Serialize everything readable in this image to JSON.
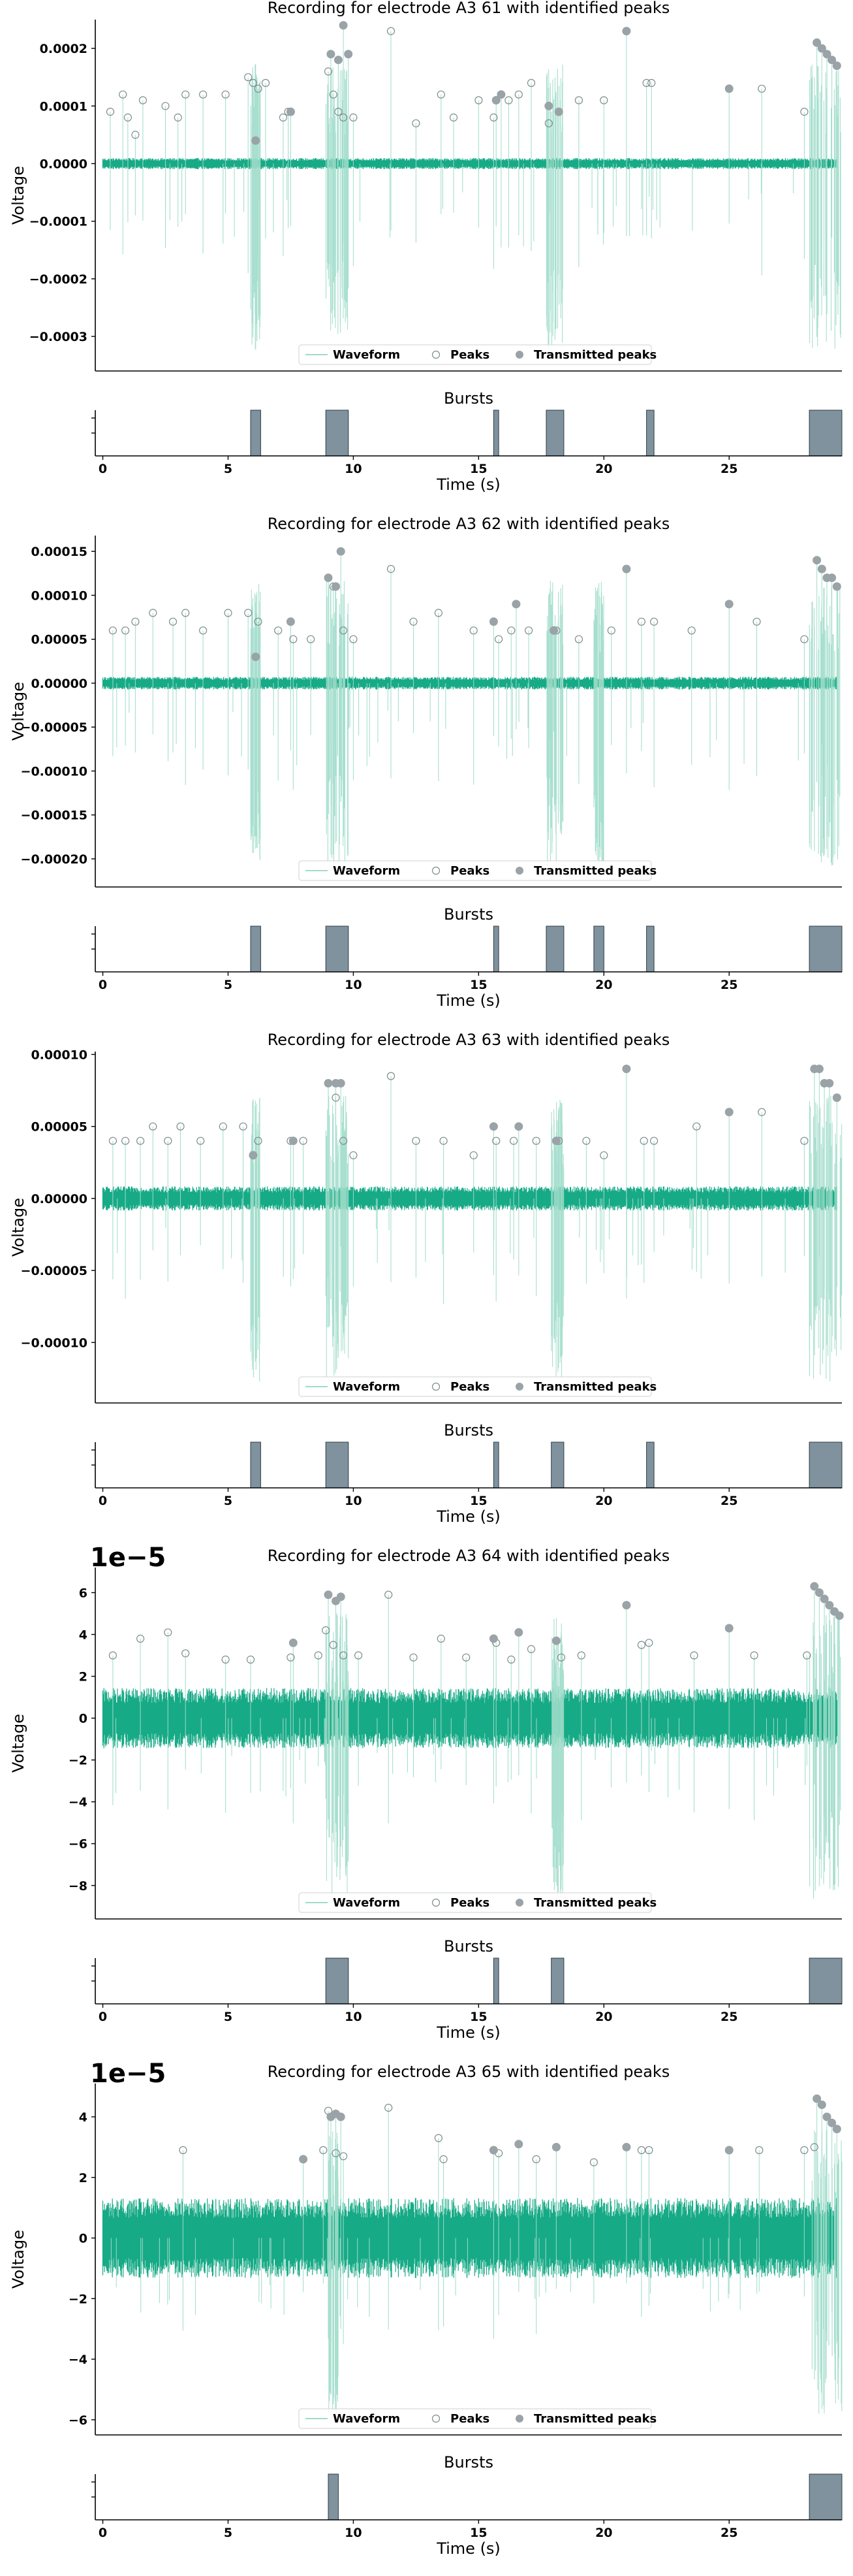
{
  "chart_data": [
    {
      "type": "line",
      "title": "Recording for electrode A3 61 with identified peaks",
      "ylabel": "Voltage",
      "ylim": [
        -0.00036,
        0.00025
      ],
      "yticks": [
        -0.0003,
        -0.0002,
        -0.0001,
        0.0,
        0.0001,
        0.0002
      ],
      "ytick_labels": [
        "−0.0003",
        "−0.0002",
        "−0.0001",
        "0.0000",
        "0.0001",
        "0.0002"
      ],
      "offset_text": "",
      "xlim": [
        -0.3,
        29.5
      ],
      "noise_amp": 8e-06,
      "legend": [
        "Waveform",
        "Peaks",
        "Transmitted peaks"
      ],
      "peaks": [
        [
          0.3,
          9e-05
        ],
        [
          0.8,
          0.00012
        ],
        [
          1.0,
          8e-05
        ],
        [
          1.3,
          5e-05
        ],
        [
          1.6,
          0.00011
        ],
        [
          2.5,
          0.0001
        ],
        [
          3.0,
          8e-05
        ],
        [
          3.3,
          0.00012
        ],
        [
          4.0,
          0.00012
        ],
        [
          4.9,
          0.00012
        ],
        [
          5.8,
          0.00015
        ],
        [
          6.0,
          0.00014
        ],
        [
          6.2,
          0.00013
        ],
        [
          6.5,
          0.00014
        ],
        [
          7.2,
          8e-05
        ],
        [
          7.4,
          9e-05
        ],
        [
          9.0,
          0.00016
        ],
        [
          9.2,
          0.00012
        ],
        [
          9.4,
          9e-05
        ],
        [
          9.6,
          8e-05
        ],
        [
          10.0,
          8e-05
        ],
        [
          11.5,
          0.00023
        ],
        [
          12.5,
          7e-05
        ],
        [
          13.5,
          0.00012
        ],
        [
          14.0,
          8e-05
        ],
        [
          15.0,
          0.00011
        ],
        [
          15.6,
          8e-05
        ],
        [
          16.2,
          0.00011
        ],
        [
          16.6,
          0.00012
        ],
        [
          17.1,
          0.00014
        ],
        [
          17.8,
          7e-05
        ],
        [
          18.2,
          9e-05
        ],
        [
          19.0,
          0.00011
        ],
        [
          20.0,
          0.00011
        ],
        [
          21.7,
          0.00014
        ],
        [
          21.9,
          0.00014
        ],
        [
          26.3,
          0.00013
        ],
        [
          28.0,
          9e-05
        ]
      ],
      "transmitted_peaks": [
        [
          6.1,
          4e-05
        ],
        [
          7.5,
          9e-05
        ],
        [
          9.1,
          0.00019
        ],
        [
          9.4,
          0.00018
        ],
        [
          9.6,
          0.00024
        ],
        [
          9.8,
          0.00019
        ],
        [
          15.7,
          0.00011
        ],
        [
          15.9,
          0.00012
        ],
        [
          17.8,
          0.0001
        ],
        [
          18.2,
          9e-05
        ],
        [
          20.9,
          0.00023
        ],
        [
          25.0,
          0.00013
        ],
        [
          28.5,
          0.00021
        ],
        [
          28.7,
          0.0002
        ],
        [
          28.9,
          0.00019
        ],
        [
          29.1,
          0.00018
        ],
        [
          29.3,
          0.00017
        ]
      ],
      "burst_ticks_x": [
        0,
        5,
        10,
        15,
        20,
        25
      ],
      "bursts_title": "Bursts",
      "bursts_xlabel": "Time (s)",
      "bursts": [
        [
          5.9,
          6.3
        ],
        [
          8.9,
          9.8
        ],
        [
          15.6,
          15.8
        ],
        [
          17.7,
          18.4
        ],
        [
          21.7,
          22.0
        ],
        [
          28.2,
          29.5
        ]
      ]
    },
    {
      "type": "line",
      "title": "Recording for electrode A3 62 with identified peaks",
      "ylabel": "Voltage",
      "ylim": [
        -0.000232,
        0.000168
      ],
      "yticks": [
        -0.0002,
        -0.00015,
        -0.0001,
        -5e-05,
        0.0,
        5e-05,
        0.0001,
        0.00015
      ],
      "ytick_labels": [
        "−0.00020",
        "−0.00015",
        "−0.00010",
        "−0.00005",
        "0.00000",
        "0.00005",
        "0.00010",
        "0.00015"
      ],
      "offset_text": "",
      "xlim": [
        -0.3,
        29.5
      ],
      "noise_amp": 6e-06,
      "legend": [
        "Waveform",
        "Peaks",
        "Transmitted peaks"
      ],
      "peaks": [
        [
          0.4,
          6e-05
        ],
        [
          0.9,
          6e-05
        ],
        [
          1.3,
          7e-05
        ],
        [
          2.0,
          8e-05
        ],
        [
          2.8,
          7e-05
        ],
        [
          3.3,
          8e-05
        ],
        [
          4.0,
          6e-05
        ],
        [
          5.0,
          8e-05
        ],
        [
          5.8,
          8e-05
        ],
        [
          6.2,
          7e-05
        ],
        [
          7.0,
          6e-05
        ],
        [
          7.6,
          5e-05
        ],
        [
          8.3,
          5e-05
        ],
        [
          9.0,
          0.00012
        ],
        [
          9.2,
          0.00011
        ],
        [
          9.6,
          6e-05
        ],
        [
          10.0,
          5e-05
        ],
        [
          11.5,
          0.00013
        ],
        [
          12.4,
          7e-05
        ],
        [
          13.4,
          8e-05
        ],
        [
          14.8,
          6e-05
        ],
        [
          15.8,
          5e-05
        ],
        [
          16.3,
          6e-05
        ],
        [
          17.0,
          6e-05
        ],
        [
          18.1,
          6e-05
        ],
        [
          19.0,
          5e-05
        ],
        [
          20.3,
          6e-05
        ],
        [
          21.5,
          7e-05
        ],
        [
          22.0,
          7e-05
        ],
        [
          23.5,
          6e-05
        ],
        [
          26.1,
          7e-05
        ],
        [
          28.0,
          5e-05
        ]
      ],
      "transmitted_peaks": [
        [
          6.1,
          3e-05
        ],
        [
          7.5,
          7e-05
        ],
        [
          9.0,
          0.00012
        ],
        [
          9.3,
          0.00011
        ],
        [
          9.5,
          0.00015
        ],
        [
          15.6,
          7e-05
        ],
        [
          16.5,
          9e-05
        ],
        [
          18.0,
          6e-05
        ],
        [
          20.9,
          0.00013
        ],
        [
          25.0,
          9e-05
        ],
        [
          28.5,
          0.00014
        ],
        [
          28.7,
          0.00013
        ],
        [
          28.9,
          0.00012
        ],
        [
          29.1,
          0.00012
        ],
        [
          29.3,
          0.00011
        ]
      ],
      "burst_ticks_x": [
        0,
        5,
        10,
        15,
        20,
        25
      ],
      "bursts_title": "Bursts",
      "bursts_xlabel": "Time (s)",
      "bursts": [
        [
          5.9,
          6.3
        ],
        [
          8.9,
          9.8
        ],
        [
          15.6,
          15.8
        ],
        [
          17.7,
          18.4
        ],
        [
          19.6,
          20.0
        ],
        [
          21.7,
          22.0
        ],
        [
          28.2,
          29.5
        ]
      ]
    },
    {
      "type": "line",
      "title": "Recording for electrode A3 63 with identified peaks",
      "ylabel": "Voltage",
      "ylim": [
        -0.000142,
        0.000102
      ],
      "yticks": [
        -0.0001,
        -5e-05,
        0.0,
        5e-05,
        0.0001
      ],
      "ytick_labels": [
        "−0.00010",
        "−0.00005",
        "0.00000",
        "0.00005",
        "0.00010"
      ],
      "offset_text": "",
      "xlim": [
        -0.3,
        29.5
      ],
      "noise_amp": 7e-06,
      "legend": [
        "Waveform",
        "Peaks",
        "Transmitted peaks"
      ],
      "peaks": [
        [
          0.4,
          4e-05
        ],
        [
          0.9,
          4e-05
        ],
        [
          1.5,
          4e-05
        ],
        [
          2.0,
          5e-05
        ],
        [
          2.6,
          4e-05
        ],
        [
          3.1,
          5e-05
        ],
        [
          3.9,
          4e-05
        ],
        [
          4.8,
          5e-05
        ],
        [
          5.6,
          5e-05
        ],
        [
          6.2,
          4e-05
        ],
        [
          7.5,
          4e-05
        ],
        [
          8.0,
          4e-05
        ],
        [
          9.0,
          8e-05
        ],
        [
          9.3,
          7e-05
        ],
        [
          9.6,
          4e-05
        ],
        [
          10.0,
          3e-05
        ],
        [
          11.5,
          8.5e-05
        ],
        [
          12.5,
          4e-05
        ],
        [
          13.6,
          4e-05
        ],
        [
          14.8,
          3e-05
        ],
        [
          15.7,
          4e-05
        ],
        [
          16.4,
          4e-05
        ],
        [
          17.3,
          4e-05
        ],
        [
          18.2,
          4e-05
        ],
        [
          19.3,
          4e-05
        ],
        [
          20.0,
          3e-05
        ],
        [
          21.6,
          4e-05
        ],
        [
          22.0,
          4e-05
        ],
        [
          23.7,
          5e-05
        ],
        [
          26.3,
          6e-05
        ],
        [
          28.0,
          4e-05
        ]
      ],
      "transmitted_peaks": [
        [
          6.0,
          3e-05
        ],
        [
          7.6,
          4e-05
        ],
        [
          9.0,
          8e-05
        ],
        [
          9.3,
          8e-05
        ],
        [
          9.5,
          8e-05
        ],
        [
          15.6,
          5e-05
        ],
        [
          16.6,
          5e-05
        ],
        [
          18.1,
          4e-05
        ],
        [
          20.9,
          9e-05
        ],
        [
          25.0,
          6e-05
        ],
        [
          28.4,
          9e-05
        ],
        [
          28.6,
          9e-05
        ],
        [
          28.8,
          8e-05
        ],
        [
          29.0,
          8e-05
        ],
        [
          29.3,
          7e-05
        ]
      ],
      "burst_ticks_x": [
        0,
        5,
        10,
        15,
        20,
        25
      ],
      "bursts_title": "Bursts",
      "bursts_xlabel": "Time (s)",
      "bursts": [
        [
          5.9,
          6.3
        ],
        [
          8.9,
          9.8
        ],
        [
          15.6,
          15.8
        ],
        [
          17.9,
          18.4
        ],
        [
          21.7,
          22.0
        ],
        [
          28.2,
          29.5
        ]
      ]
    },
    {
      "type": "line",
      "title": "Recording for electrode A3 64 with identified peaks",
      "ylabel": "Voltage",
      "ylim": [
        -9.6,
        7.2
      ],
      "yticks": [
        -8,
        -6,
        -4,
        -2,
        0,
        2,
        4,
        6
      ],
      "ytick_labels": [
        "−8",
        "−6",
        "−4",
        "−2",
        "0",
        "2",
        "4",
        "6"
      ],
      "offset_text": "1e−5",
      "xlim": [
        -0.3,
        29.5
      ],
      "noise_amp": 1.2,
      "legend": [
        "Waveform",
        "Peaks",
        "Transmitted peaks"
      ],
      "peaks": [
        [
          0.4,
          3.0
        ],
        [
          1.5,
          3.8
        ],
        [
          2.6,
          4.1
        ],
        [
          3.3,
          3.1
        ],
        [
          4.9,
          2.8
        ],
        [
          5.9,
          2.8
        ],
        [
          7.5,
          2.9
        ],
        [
          8.6,
          3.0
        ],
        [
          8.9,
          4.2
        ],
        [
          9.2,
          3.5
        ],
        [
          9.6,
          3.0
        ],
        [
          10.2,
          3.0
        ],
        [
          11.4,
          5.9
        ],
        [
          12.4,
          2.9
        ],
        [
          13.5,
          3.8
        ],
        [
          14.5,
          2.9
        ],
        [
          15.7,
          3.6
        ],
        [
          16.3,
          2.8
        ],
        [
          17.1,
          3.3
        ],
        [
          18.3,
          2.9
        ],
        [
          19.1,
          3.0
        ],
        [
          21.5,
          3.5
        ],
        [
          21.8,
          3.6
        ],
        [
          23.6,
          3.0
        ],
        [
          26.0,
          3.0
        ],
        [
          28.1,
          3.0
        ]
      ],
      "transmitted_peaks": [
        [
          7.6,
          3.6
        ],
        [
          9.0,
          5.9
        ],
        [
          9.3,
          5.6
        ],
        [
          9.5,
          5.8
        ],
        [
          15.6,
          3.8
        ],
        [
          16.6,
          4.1
        ],
        [
          18.1,
          3.7
        ],
        [
          20.9,
          5.4
        ],
        [
          25.0,
          4.3
        ],
        [
          28.4,
          6.3
        ],
        [
          28.6,
          6.0
        ],
        [
          28.8,
          5.7
        ],
        [
          29.0,
          5.4
        ],
        [
          29.2,
          5.1
        ],
        [
          29.4,
          4.9
        ]
      ],
      "burst_ticks_x": [
        0,
        5,
        10,
        15,
        20,
        25
      ],
      "bursts_title": "Bursts",
      "bursts_xlabel": "Time (s)",
      "bursts": [
        [
          8.9,
          9.8
        ],
        [
          15.6,
          15.8
        ],
        [
          17.9,
          18.4
        ],
        [
          28.2,
          29.5
        ]
      ]
    },
    {
      "type": "line",
      "title": "Recording for electrode A3 65 with identified peaks",
      "ylabel": "Voltage",
      "ylim": [
        -6.5,
        5.1
      ],
      "yticks": [
        -6,
        -4,
        -2,
        0,
        2,
        4
      ],
      "ytick_labels": [
        "−6",
        "−4",
        "−2",
        "0",
        "2",
        "4"
      ],
      "offset_text": "1e−5",
      "xlim": [
        -0.3,
        29.5
      ],
      "noise_amp": 1.1,
      "legend": [
        "Waveform",
        "Peaks",
        "Transmitted peaks"
      ],
      "peaks": [
        [
          3.2,
          2.9
        ],
        [
          8.8,
          2.9
        ],
        [
          9.0,
          4.2
        ],
        [
          9.3,
          2.8
        ],
        [
          9.6,
          2.7
        ],
        [
          11.4,
          4.3
        ],
        [
          13.4,
          3.3
        ],
        [
          13.6,
          2.6
        ],
        [
          15.8,
          2.8
        ],
        [
          17.3,
          2.6
        ],
        [
          19.6,
          2.5
        ],
        [
          21.5,
          2.9
        ],
        [
          21.8,
          2.9
        ],
        [
          26.2,
          2.9
        ],
        [
          28.0,
          2.9
        ],
        [
          28.4,
          3.0
        ]
      ],
      "transmitted_peaks": [
        [
          8.0,
          2.6
        ],
        [
          9.1,
          4.0
        ],
        [
          9.3,
          4.1
        ],
        [
          9.5,
          4.0
        ],
        [
          15.6,
          2.9
        ],
        [
          16.6,
          3.1
        ],
        [
          18.1,
          3.0
        ],
        [
          20.9,
          3.0
        ],
        [
          25.0,
          2.9
        ],
        [
          28.5,
          4.6
        ],
        [
          28.7,
          4.4
        ],
        [
          28.9,
          4.0
        ],
        [
          29.1,
          3.8
        ],
        [
          29.3,
          3.6
        ]
      ],
      "burst_ticks_x": [
        0,
        5,
        10,
        15,
        20,
        25
      ],
      "bursts_title": "Bursts",
      "bursts_xlabel": "Time (s)",
      "bursts": [
        [
          9.0,
          9.4
        ],
        [
          28.2,
          29.5
        ]
      ]
    }
  ],
  "colors": {
    "waveform": "#17aa86",
    "waveform_light": "#9fdcc9",
    "peak_edge": "#7f8c8d",
    "transmitted": "#9aa3a7",
    "burst_fill": "#7f929e",
    "burst_edge": "#2f3b44",
    "axis": "#000000"
  }
}
